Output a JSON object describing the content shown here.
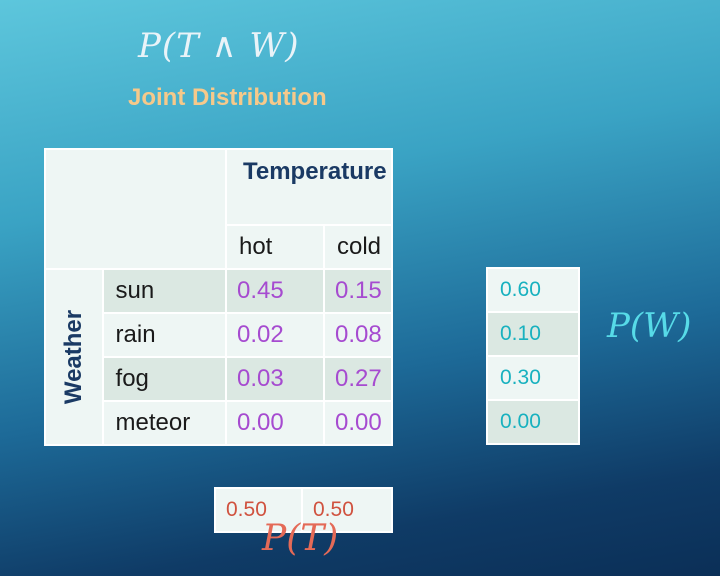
{
  "title_formula": "P(T ∧ W)",
  "subtitle": "Joint Distribution",
  "joint_table": {
    "column_group_label": "Temperature",
    "column_headers": [
      "hot",
      "cold"
    ],
    "row_group_label": "Weather",
    "rows": [
      {
        "label": "sun",
        "values": [
          "0.45",
          "0.15"
        ]
      },
      {
        "label": "rain",
        "values": [
          "0.02",
          "0.08"
        ]
      },
      {
        "label": "fog",
        "values": [
          "0.03",
          "0.27"
        ]
      },
      {
        "label": "meteor",
        "values": [
          "0.00",
          "0.00"
        ]
      }
    ]
  },
  "marginal_w": {
    "formula": "P(W)",
    "values": [
      "0.60",
      "0.10",
      "0.30",
      "0.00"
    ]
  },
  "marginal_t": {
    "formula": "P(T)",
    "values": [
      "0.50",
      "0.50"
    ]
  },
  "colors": {
    "joint_values": "#a64bd0",
    "marginal_w": "#18b1bf",
    "marginal_t": "#d0523f",
    "subtitle": "#f6c98a",
    "header_text": "#1a3a64"
  }
}
